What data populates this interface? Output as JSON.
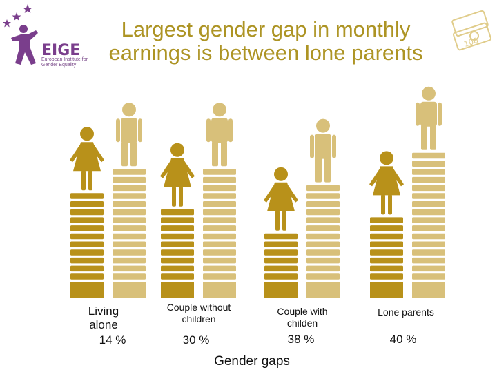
{
  "title": "Largest gender gap in monthly earnings is between lone parents",
  "logo": {
    "brand": "EIGE",
    "subtext": "European Institute for Gender Equality"
  },
  "colors": {
    "women": "#b8911a",
    "men": "#d8c07a",
    "title": "#ad9424",
    "logo": "#7a3e8c"
  },
  "chart_data": {
    "type": "bar",
    "categories": [
      "Living alone",
      "Couple without children",
      "Couple with childen",
      "Lone parents"
    ],
    "category_labels": [
      "Living\nalone",
      "Couple without\nchildren",
      "Couple with\nchilden",
      "Lone parents"
    ],
    "series": [
      {
        "values": [
          11,
          9,
          6,
          8
        ]
      },
      {
        "values": [
          14,
          14,
          12,
          16
        ]
      }
    ],
    "gap_labels": [
      "14 %",
      "30 %",
      "38 %",
      "40 %"
    ],
    "xlabel": "Gender gaps",
    "ylabel": ""
  }
}
